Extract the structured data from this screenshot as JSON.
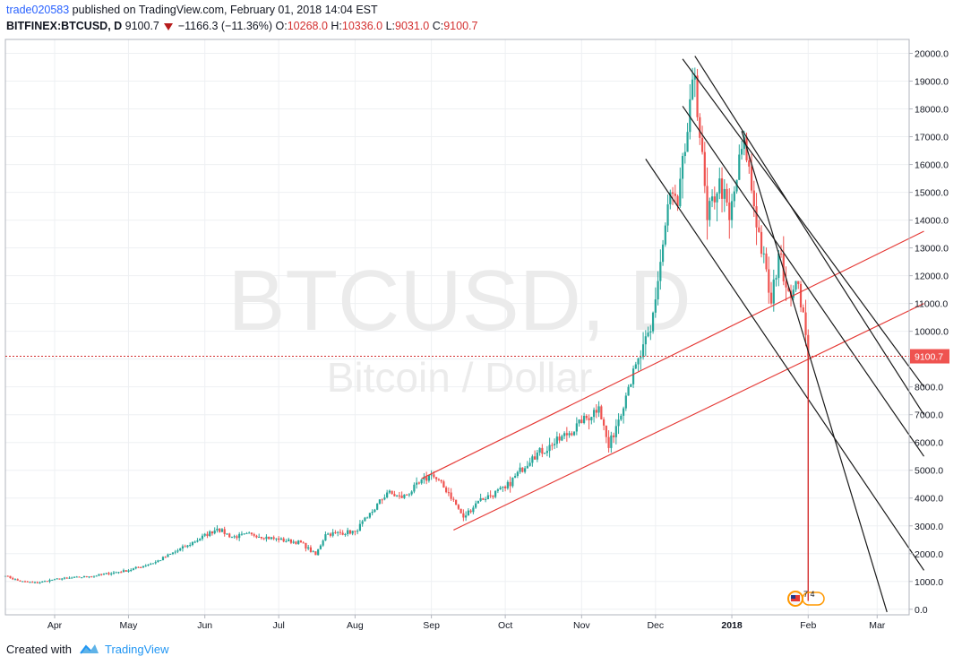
{
  "header": {
    "author": "trade020583",
    "published": " published on TradingView.com, February 01, 2018 14:04 EST",
    "symbol": "BITFINEX:BTCUSD, D",
    "last": "9100.7",
    "change": "−1166.3 (−11.36%)",
    "o_label": "O:",
    "o": "10268.0",
    "h_label": "H:",
    "h": "10336.0",
    "l_label": "L:",
    "l": "9031.0",
    "c_label": "C:",
    "c": "9100.7"
  },
  "watermark": {
    "symbol": "BTCUSD, D",
    "description": "Bitcoin / Dollar"
  },
  "footer": {
    "created": "Created with",
    "brand": "TradingView"
  },
  "colors": {
    "up": "#26a69a",
    "down": "#ef5350",
    "channel": "#e53935",
    "trend": "#1a1a1a",
    "price": "#d32f2f"
  },
  "chart_data": {
    "type": "candlestick",
    "x_start": "2017-03-12",
    "x_end": "2018-03-14",
    "ylim": [
      -200,
      20500
    ],
    "y_ticks": [
      0,
      1000,
      2000,
      3000,
      4000,
      5000,
      6000,
      7000,
      8000,
      9000,
      10000,
      11000,
      12000,
      13000,
      14000,
      15000,
      16000,
      17000,
      18000,
      19000,
      20000
    ],
    "y_tick_labels": [
      "0.0",
      "1000.0",
      "2000.0",
      "3000.0",
      "4000.0",
      "5000.0",
      "6000.0",
      "7000.0",
      "8000.0",
      "9000.0",
      "10000.0",
      "11000.0",
      "12000.0",
      "13000.0",
      "14000.0",
      "15000.0",
      "16000.0",
      "17000.0",
      "18000.0",
      "19000.0",
      "20000.0"
    ],
    "x_ticks": [
      {
        "label": "Apr",
        "date": "2017-04-01"
      },
      {
        "label": "May",
        "date": "2017-05-01"
      },
      {
        "label": "Jun",
        "date": "2017-06-01"
      },
      {
        "label": "Jul",
        "date": "2017-07-01"
      },
      {
        "label": "Aug",
        "date": "2017-08-01"
      },
      {
        "label": "Sep",
        "date": "2017-09-01"
      },
      {
        "label": "Oct",
        "date": "2017-10-01"
      },
      {
        "label": "Nov",
        "date": "2017-11-01"
      },
      {
        "label": "Dec",
        "date": "2017-12-01"
      },
      {
        "label": "2018",
        "date": "2018-01-01",
        "bold": true
      },
      {
        "label": "Feb",
        "date": "2018-02-01"
      },
      {
        "label": "Mar",
        "date": "2018-03-01"
      }
    ],
    "price_line": {
      "value": 9100.7,
      "label": "9100.7"
    },
    "anchors": [
      [
        "2017-03-12",
        1200
      ],
      [
        "2017-03-18",
        1000
      ],
      [
        "2017-03-25",
        950
      ],
      [
        "2017-04-01",
        1080
      ],
      [
        "2017-04-15",
        1180
      ],
      [
        "2017-05-01",
        1400
      ],
      [
        "2017-05-12",
        1700
      ],
      [
        "2017-05-25",
        2300
      ],
      [
        "2017-06-06",
        2900
      ],
      [
        "2017-06-12",
        2600
      ],
      [
        "2017-06-20",
        2700
      ],
      [
        "2017-07-01",
        2500
      ],
      [
        "2017-07-10",
        2400
      ],
      [
        "2017-07-16",
        1950
      ],
      [
        "2017-07-20",
        2700
      ],
      [
        "2017-08-01",
        2800
      ],
      [
        "2017-08-06",
        3300
      ],
      [
        "2017-08-14",
        4200
      ],
      [
        "2017-08-20",
        4000
      ],
      [
        "2017-09-01",
        4850
      ],
      [
        "2017-09-08",
        4200
      ],
      [
        "2017-09-14",
        3300
      ],
      [
        "2017-09-20",
        3900
      ],
      [
        "2017-10-01",
        4350
      ],
      [
        "2017-10-12",
        5500
      ],
      [
        "2017-10-20",
        5900
      ],
      [
        "2017-11-01",
        6700
      ],
      [
        "2017-11-08",
        7300
      ],
      [
        "2017-11-12",
        5800
      ],
      [
        "2017-11-20",
        8000
      ],
      [
        "2017-11-29",
        10000
      ],
      [
        "2017-12-07",
        15000
      ],
      [
        "2017-12-10",
        14500
      ],
      [
        "2017-12-17",
        19200
      ],
      [
        "2017-12-22",
        14000
      ],
      [
        "2017-12-27",
        15500
      ],
      [
        "2017-12-31",
        14000
      ],
      [
        "2018-01-06",
        17000
      ],
      [
        "2018-01-10",
        14500
      ],
      [
        "2018-01-17",
        11000
      ],
      [
        "2018-01-20",
        12800
      ],
      [
        "2018-01-25",
        11200
      ],
      [
        "2018-01-28",
        11700
      ],
      [
        "2018-02-01",
        9100.7
      ]
    ],
    "lines": [
      {
        "color": "channel",
        "from": [
          "2017-08-28",
          4700
        ],
        "to": [
          "2018-03-20",
          13600
        ]
      },
      {
        "color": "channel",
        "from": [
          "2017-09-10",
          2850
        ],
        "to": [
          "2018-03-20",
          11000
        ]
      },
      {
        "color": "trend",
        "from": [
          "2017-12-12",
          19800
        ],
        "to": [
          "2018-03-20",
          8000
        ]
      },
      {
        "color": "trend",
        "from": [
          "2017-12-17",
          19900
        ],
        "to": [
          "2018-03-20",
          7000
        ]
      },
      {
        "color": "trend",
        "from": [
          "2017-12-12",
          18100
        ],
        "to": [
          "2018-03-20",
          5500
        ]
      },
      {
        "color": "trend",
        "from": [
          "2017-11-27",
          16200
        ],
        "to": [
          "2018-03-20",
          1400
        ]
      },
      {
        "color": "trend",
        "from": [
          "2018-01-05",
          17200
        ],
        "to": [
          "2018-03-05",
          -100
        ]
      },
      {
        "color": "price",
        "from": [
          "2018-02-01",
          9100.7
        ],
        "to": [
          "2018-02-01",
          300
        ]
      }
    ],
    "event_label": "7  4"
  }
}
